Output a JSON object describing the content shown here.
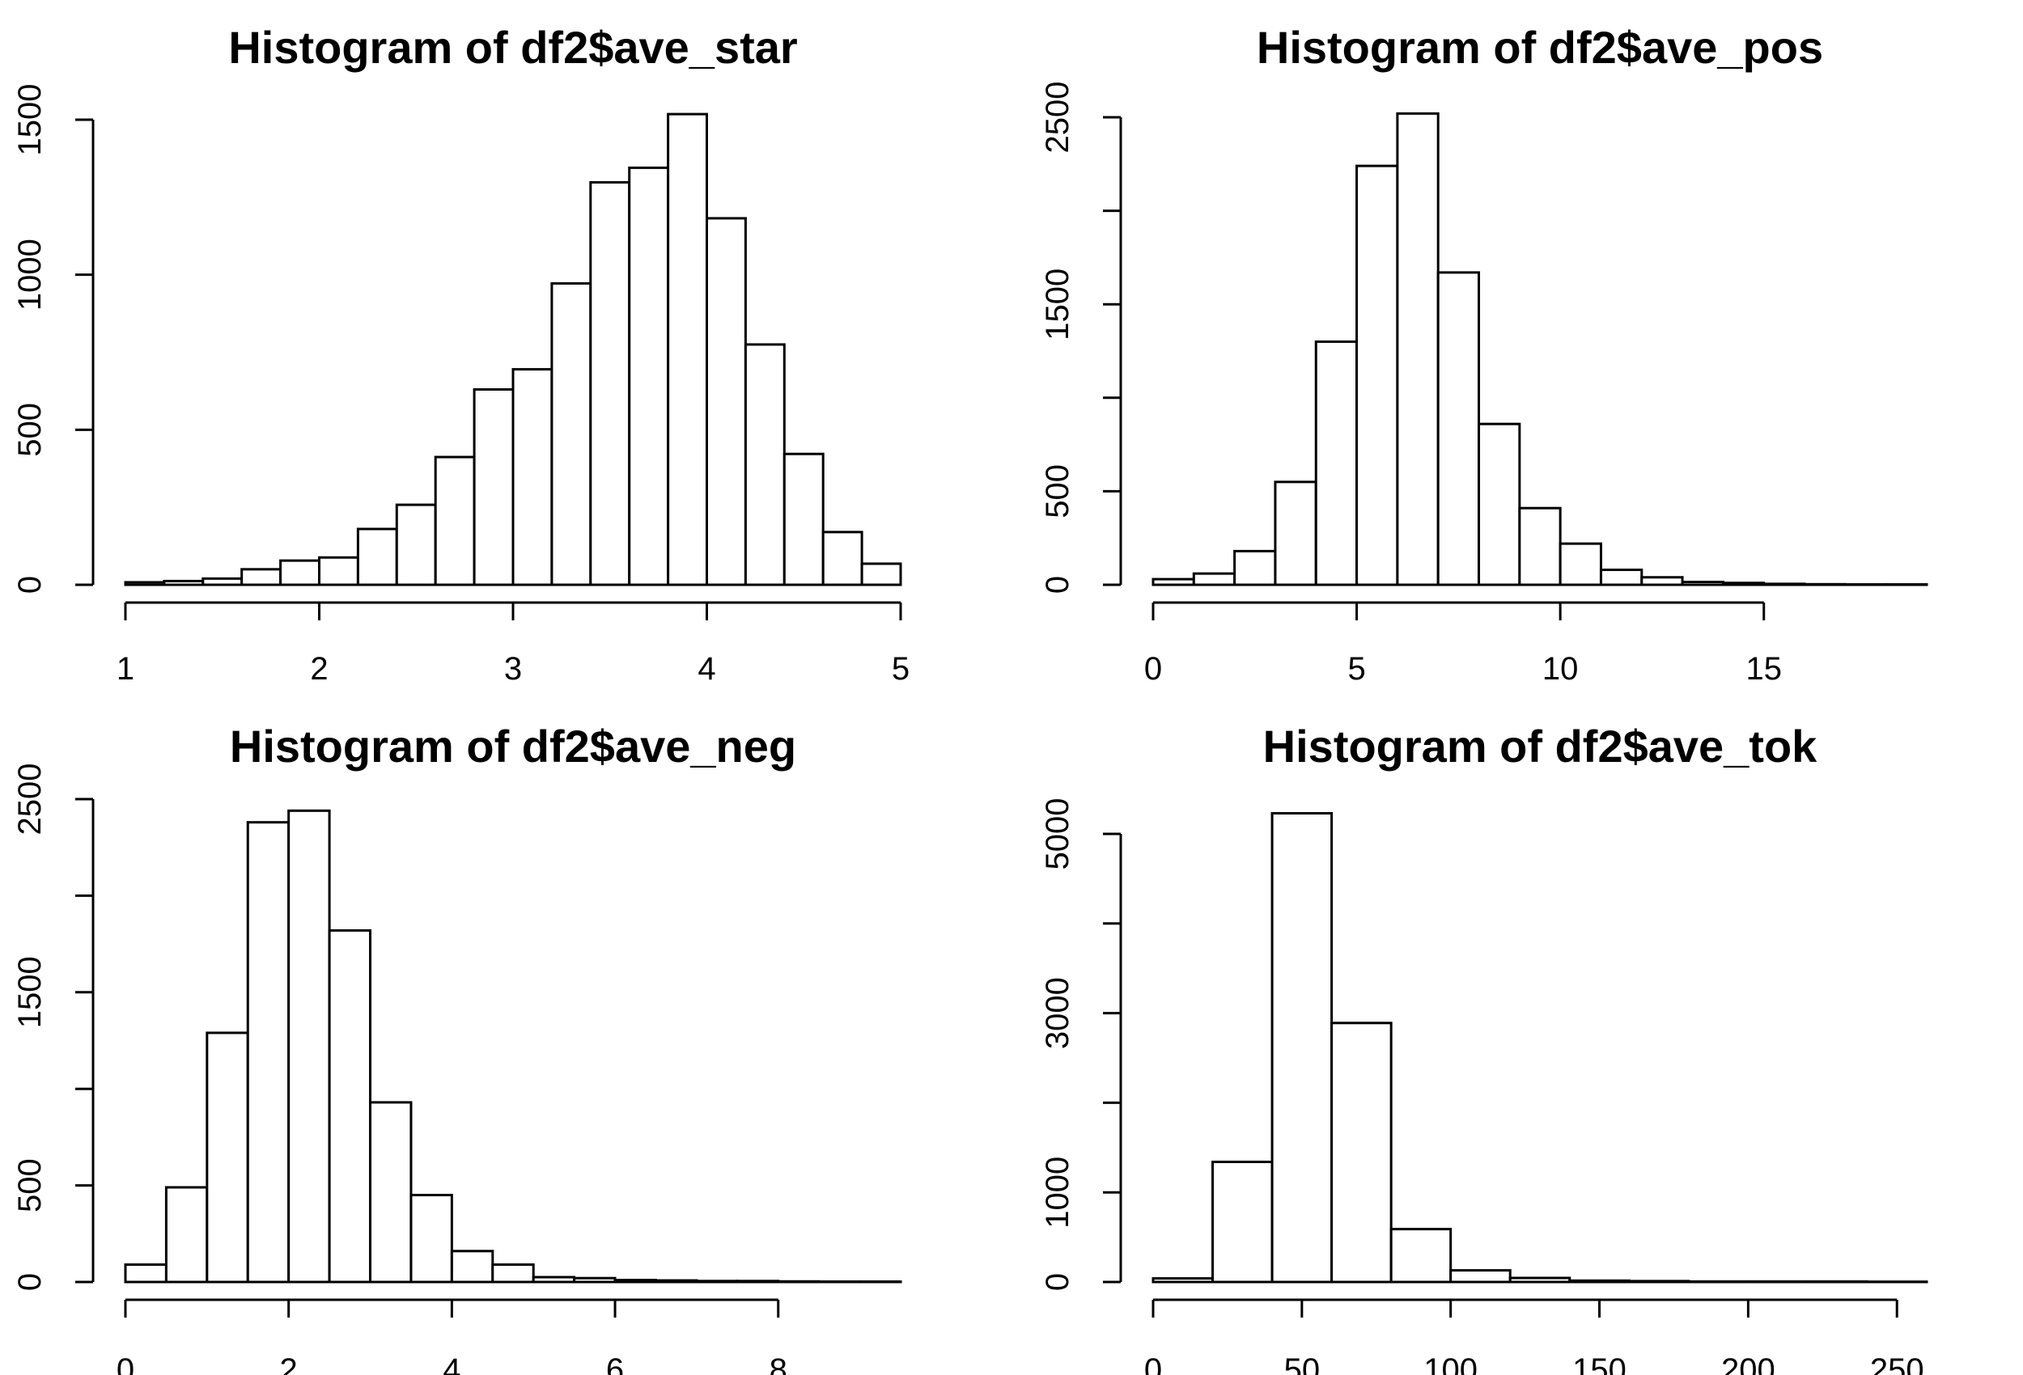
{
  "chart_data": [
    {
      "type": "bar",
      "subtype": "histogram",
      "title": "Histogram of df2$ave_star",
      "xlabel": "",
      "ylabel": "",
      "bin_start": 1.0,
      "bin_width": 0.2,
      "values": [
        8,
        12,
        20,
        50,
        78,
        88,
        180,
        258,
        412,
        630,
        695,
        972,
        1298,
        1345,
        1518,
        1182,
        775,
        422,
        170,
        68
      ],
      "xlim": [
        1,
        5
      ],
      "ylim": [
        0,
        1500
      ],
      "xticks": [
        1,
        2,
        3,
        4,
        5
      ],
      "yticks": [
        0,
        500,
        1000,
        1500
      ]
    },
    {
      "type": "bar",
      "subtype": "histogram",
      "title": "Histogram of df2$ave_pos",
      "xlabel": "",
      "ylabel": "",
      "bin_start": 0,
      "bin_width": 1,
      "values": [
        30,
        60,
        180,
        550,
        1300,
        2240,
        2520,
        1670,
        860,
        410,
        220,
        80,
        40,
        15,
        10,
        5,
        3,
        2,
        2
      ],
      "xlim": [
        0,
        15
      ],
      "ylim": [
        0,
        2500
      ],
      "xticks": [
        0,
        5,
        10,
        15
      ],
      "yticks": [
        0,
        500,
        1500,
        2500
      ]
    },
    {
      "type": "bar",
      "subtype": "histogram",
      "title": "Histogram of df2$ave_neg",
      "xlabel": "",
      "ylabel": "",
      "bin_start": 0,
      "bin_width": 0.5,
      "values": [
        90,
        490,
        1290,
        2380,
        2440,
        1820,
        930,
        450,
        160,
        90,
        25,
        20,
        10,
        8,
        5,
        5,
        3,
        2,
        2
      ],
      "xlim": [
        0,
        8
      ],
      "ylim": [
        0,
        2500
      ],
      "xticks": [
        0,
        2,
        4,
        6,
        8
      ],
      "yticks": [
        0,
        500,
        1500,
        2500
      ]
    },
    {
      "type": "bar",
      "subtype": "histogram",
      "title": "Histogram of df2$ave_tok",
      "xlabel": "",
      "ylabel": "",
      "bin_start": 0,
      "bin_width": 20,
      "values": [
        40,
        1340,
        5230,
        2890,
        590,
        130,
        45,
        15,
        10,
        5,
        5,
        5,
        3
      ],
      "xlim": [
        0,
        250
      ],
      "ylim": [
        0,
        5000
      ],
      "xticks": [
        0,
        50,
        100,
        150,
        200,
        250
      ],
      "yticks": [
        0,
        1000,
        3000,
        5000
      ]
    }
  ]
}
